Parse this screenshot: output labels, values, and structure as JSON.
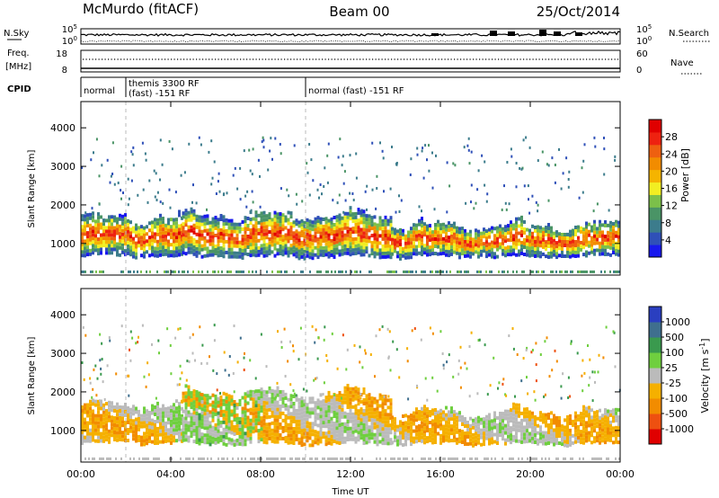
{
  "header": {
    "station": "McMurdo (fitACF)",
    "beam": "Beam 00",
    "date": "25/Oct/2014"
  },
  "noise_panel": {
    "left_label": "N.Sky",
    "left_ticks": [
      "10^5",
      "10^0"
    ],
    "right_label": "N.Search",
    "right_ticks": [
      "10^5",
      "10^0"
    ]
  },
  "freq_panel": {
    "left_label_1": "Freq.",
    "left_label_2": "[MHz]",
    "left_ticks": [
      "18",
      "8"
    ],
    "right_label": "Nave",
    "right_ticks": [
      "60",
      "0"
    ]
  },
  "cpid_panel": {
    "label": "CPID",
    "segments": [
      {
        "start_h": 0,
        "end_h": 2,
        "lines": [
          "normal"
        ]
      },
      {
        "start_h": 2,
        "end_h": 10,
        "lines": [
          "themis 3300 RF",
          "(fast) -151 RF"
        ]
      },
      {
        "start_h": 10,
        "end_h": 24,
        "lines": [
          "normal (fast) -151 RF"
        ]
      }
    ]
  },
  "x_axis": {
    "label": "Time UT",
    "ticks": [
      "00:00",
      "04:00",
      "08:00",
      "12:00",
      "16:00",
      "20:00",
      "00:00"
    ]
  },
  "chart_data": [
    {
      "type": "heatmap",
      "quantity": "Power",
      "ylabel": "Slant Range [km]",
      "xlabel": "Time UT",
      "xlim_hours": [
        0,
        24
      ],
      "ylim_km": [
        180,
        4680
      ],
      "yticks": [
        "4000",
        "3000",
        "2000",
        "1000"
      ],
      "colorbar": {
        "label": "Power [dB]",
        "ticks": [
          "28",
          "24",
          "20",
          "16",
          "12",
          "8",
          "4"
        ],
        "range": [
          0,
          32
        ],
        "colors": [
          "#1818ee",
          "#2f50b8",
          "#3c7c8c",
          "#4a9466",
          "#7cc04a",
          "#f2ee22",
          "#f5b400",
          "#f28c00",
          "#ee6010",
          "#ee2210",
          "#e00000"
        ]
      },
      "backscatter_bands": [
        {
          "start_h": 0.0,
          "end_h": 4.5,
          "range_km": [
            620,
            1700
          ]
        },
        {
          "start_h": 4.5,
          "end_h": 13.8,
          "range_km": [
            600,
            1750
          ]
        },
        {
          "start_h": 13.8,
          "end_h": 24.0,
          "range_km": [
            600,
            1500
          ]
        }
      ]
    },
    {
      "type": "heatmap",
      "quantity": "Velocity",
      "ylabel": "Slant Range [km]",
      "xlabel": "Time UT",
      "xlim_hours": [
        0,
        24
      ],
      "ylim_km": [
        180,
        4680
      ],
      "yticks": [
        "4000",
        "3000",
        "2000",
        "1000"
      ],
      "colorbar": {
        "label": "Velocity [m s^-1]",
        "ticks": [
          "1000",
          "500",
          "100",
          "25",
          "-25",
          "-100",
          "-500",
          "-1000"
        ],
        "range": [
          -1200,
          1200
        ],
        "colors": [
          "#e00000",
          "#ee5010",
          "#f28c00",
          "#f5b000",
          "#bbbbbb",
          "#6fcf3f",
          "#3a9a4e",
          "#3f6f8e",
          "#2a3fc0"
        ]
      },
      "backscatter_bands": [
        {
          "start_h": 0.0,
          "end_h": 4.5,
          "range_km": [
            620,
            1700
          ]
        },
        {
          "start_h": 4.5,
          "end_h": 13.8,
          "range_km": [
            600,
            2000
          ]
        },
        {
          "start_h": 13.8,
          "end_h": 24.0,
          "range_km": [
            600,
            1500
          ]
        }
      ]
    }
  ],
  "colors": {
    "axes": "#000000",
    "cpid_divider": "#bbbbbb",
    "background": "#ffffff"
  }
}
